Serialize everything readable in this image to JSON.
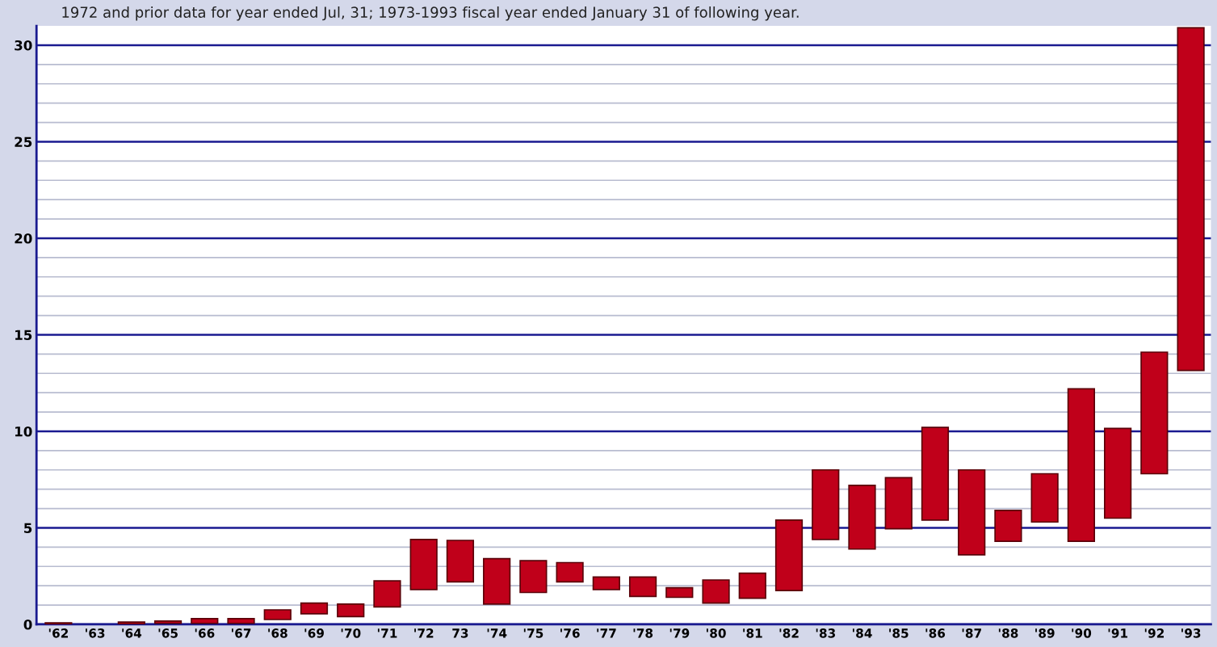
{
  "chart_data": {
    "type": "bar",
    "annotations": [
      "1972 and prior data for year ended Jul, 31; 1973-1993 fiscal year ended January 31 of following year."
    ],
    "categories": [
      "'62",
      "'63",
      "'64",
      "'65",
      "'66",
      "'67",
      "'68",
      "'69",
      "'70",
      "'71",
      "'72",
      "73",
      "'74",
      "'75",
      "'76",
      "'77",
      "'78",
      "'79",
      "'80",
      "'81",
      "'82",
      "'83",
      "'84",
      "'85",
      "'86",
      "'87",
      "'88",
      "'89",
      "'90",
      "'91",
      "'92",
      "'93"
    ],
    "base": [
      0,
      null,
      0.02,
      0.05,
      0.05,
      0.05,
      0.25,
      0.55,
      0.4,
      0.9,
      1.8,
      2.2,
      1.05,
      1.65,
      2.2,
      1.8,
      1.45,
      1.4,
      1.1,
      1.35,
      1.75,
      4.4,
      3.9,
      4.95,
      5.4,
      3.6,
      4.3,
      5.3,
      4.3,
      5.5,
      7.8,
      13.15
    ],
    "values": [
      0.08,
      null,
      0.1,
      0.12,
      0.25,
      0.25,
      0.5,
      0.55,
      0.65,
      1.35,
      2.6,
      2.15,
      2.35,
      1.65,
      1.0,
      0.65,
      1.0,
      0.5,
      1.2,
      1.3,
      3.65,
      3.6,
      3.3,
      2.65,
      4.8,
      4.4,
      1.6,
      2.5,
      7.9,
      4.65,
      6.3,
      17.75
    ],
    "color": "#c0001a",
    "ylim": [
      0,
      31
    ],
    "yticks": [
      0,
      {
        "value": 1,
        "label": null
      },
      {
        "value": 2,
        "label": null
      },
      {
        "value": 3,
        "label": null
      },
      {
        "value": 4,
        "label": null
      },
      5,
      {
        "value": 6,
        "label": null
      },
      {
        "value": 7,
        "label": null
      },
      {
        "value": 8,
        "label": null
      },
      {
        "value": 9,
        "label": null
      },
      10,
      {
        "value": 11,
        "label": null
      },
      {
        "value": 12,
        "label": null
      },
      {
        "value": 13,
        "label": null
      },
      {
        "value": 14,
        "label": null
      },
      15,
      {
        "value": 16,
        "label": null
      },
      {
        "value": 17,
        "label": null
      },
      {
        "value": 18,
        "label": null
      },
      {
        "value": 19,
        "label": null
      },
      20,
      {
        "value": 21,
        "label": null
      },
      {
        "value": 22,
        "label": null
      },
      {
        "value": 23,
        "label": null
      },
      {
        "value": 24,
        "label": null
      },
      25,
      {
        "value": 26,
        "label": null
      },
      {
        "value": 27,
        "label": null
      },
      {
        "value": 28,
        "label": null
      },
      {
        "value": 29,
        "label": null
      },
      30
    ],
    "grid": "y"
  }
}
